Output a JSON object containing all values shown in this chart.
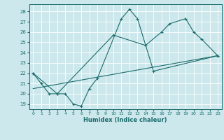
{
  "title": "",
  "xlabel": "Humidex (Indice chaleur)",
  "bg_color": "#cce8ec",
  "line_color": "#1a6b6b",
  "grid_color": "#ffffff",
  "ylim": [
    18.5,
    28.7
  ],
  "xlim": [
    -0.5,
    23.5
  ],
  "yticks": [
    19,
    20,
    21,
    22,
    23,
    24,
    25,
    26,
    27,
    28
  ],
  "xticks": [
    0,
    1,
    2,
    3,
    4,
    5,
    6,
    7,
    8,
    9,
    10,
    11,
    12,
    13,
    14,
    15,
    16,
    17,
    18,
    19,
    20,
    21,
    22,
    23
  ],
  "series": [
    {
      "x": [
        0,
        1,
        2,
        3,
        4,
        5,
        6,
        7,
        8,
        11,
        12,
        13,
        15,
        23
      ],
      "y": [
        22,
        21,
        20,
        20,
        20,
        19,
        18.8,
        20.5,
        21.5,
        27.3,
        28.2,
        27.3,
        22.2,
        23.7
      ]
    },
    {
      "x": [
        0,
        3,
        10,
        14,
        16,
        17,
        19,
        20,
        21,
        23
      ],
      "y": [
        22,
        20,
        25.7,
        24.7,
        26,
        26.8,
        27.3,
        26,
        25.3,
        23.7
      ]
    },
    {
      "x": [
        0,
        23
      ],
      "y": [
        20.5,
        23.7
      ]
    },
    {
      "x": [
        0,
        3,
        10,
        14,
        16,
        17,
        19,
        20,
        21,
        23
      ],
      "y": [
        22,
        20,
        25.7,
        24.7,
        26,
        26.8,
        27.3,
        26,
        25.3,
        23.7
      ]
    }
  ]
}
